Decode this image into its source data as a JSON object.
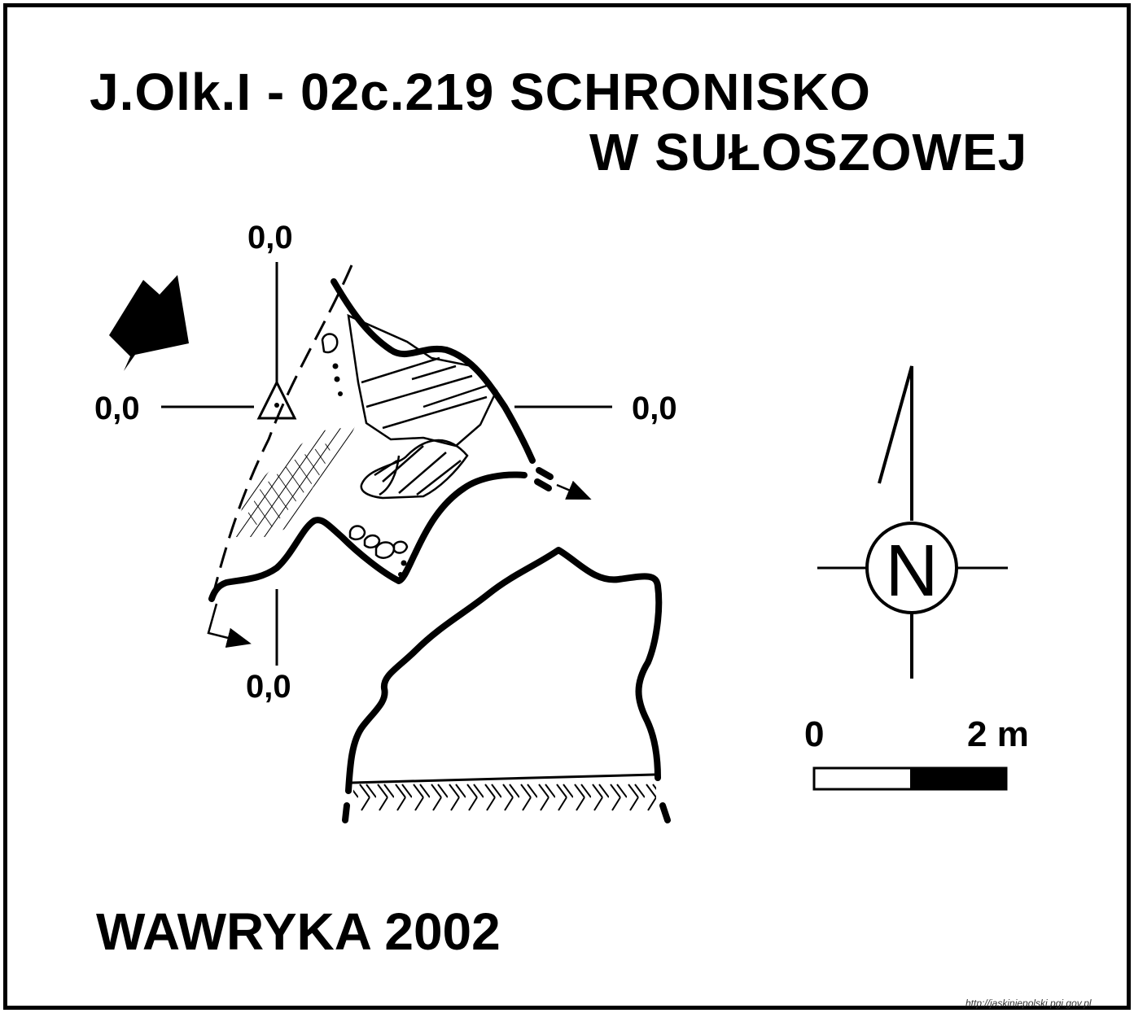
{
  "title": {
    "line1": "J.Olk.I - 02c.219  SCHRONISKO",
    "line2": "W SUŁOSZOWEJ"
  },
  "coordinates": {
    "top": "0,0",
    "left": "0,0",
    "right": "0,0",
    "bottom": "0,0"
  },
  "scale": {
    "start_label": "0",
    "end_label": "2 m"
  },
  "compass": {
    "letter": "N"
  },
  "author": "WAWRYKA 2002",
  "source_url": "http://jaskiniepolski.pgi.gov.pl",
  "colors": {
    "ink": "#000000",
    "paper": "#ffffff"
  }
}
